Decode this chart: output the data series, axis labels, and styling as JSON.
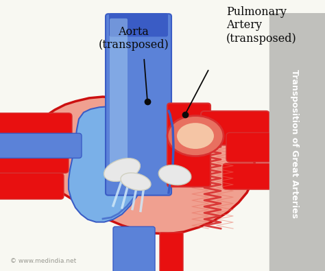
{
  "bg_color": "#f8f8f2",
  "sidebar_color": "#c0c0bc",
  "sidebar_text": "Transposition of Great Arteries",
  "sidebar_text_color": "#ffffff",
  "blue_dark": "#3a5cc5",
  "blue_mid": "#5b82d8",
  "blue_light": "#7ab0e8",
  "blue_pale": "#a8cef0",
  "red_bright": "#e81010",
  "red_mid": "#d83030",
  "red_light": "#f08080",
  "salmon": "#f0a090",
  "salmon_dark": "#e87060",
  "outline_red": "#cc1010",
  "white_valve": "#e8e8e8",
  "white_blue": "#d0e8f8",
  "black": "#0a0a0a",
  "watermark": "© www.medindia.net",
  "label_aorta": "Aorta\n(transposed)",
  "label_pulmonary": "Pulmonary\nArtery\n(transposed)"
}
